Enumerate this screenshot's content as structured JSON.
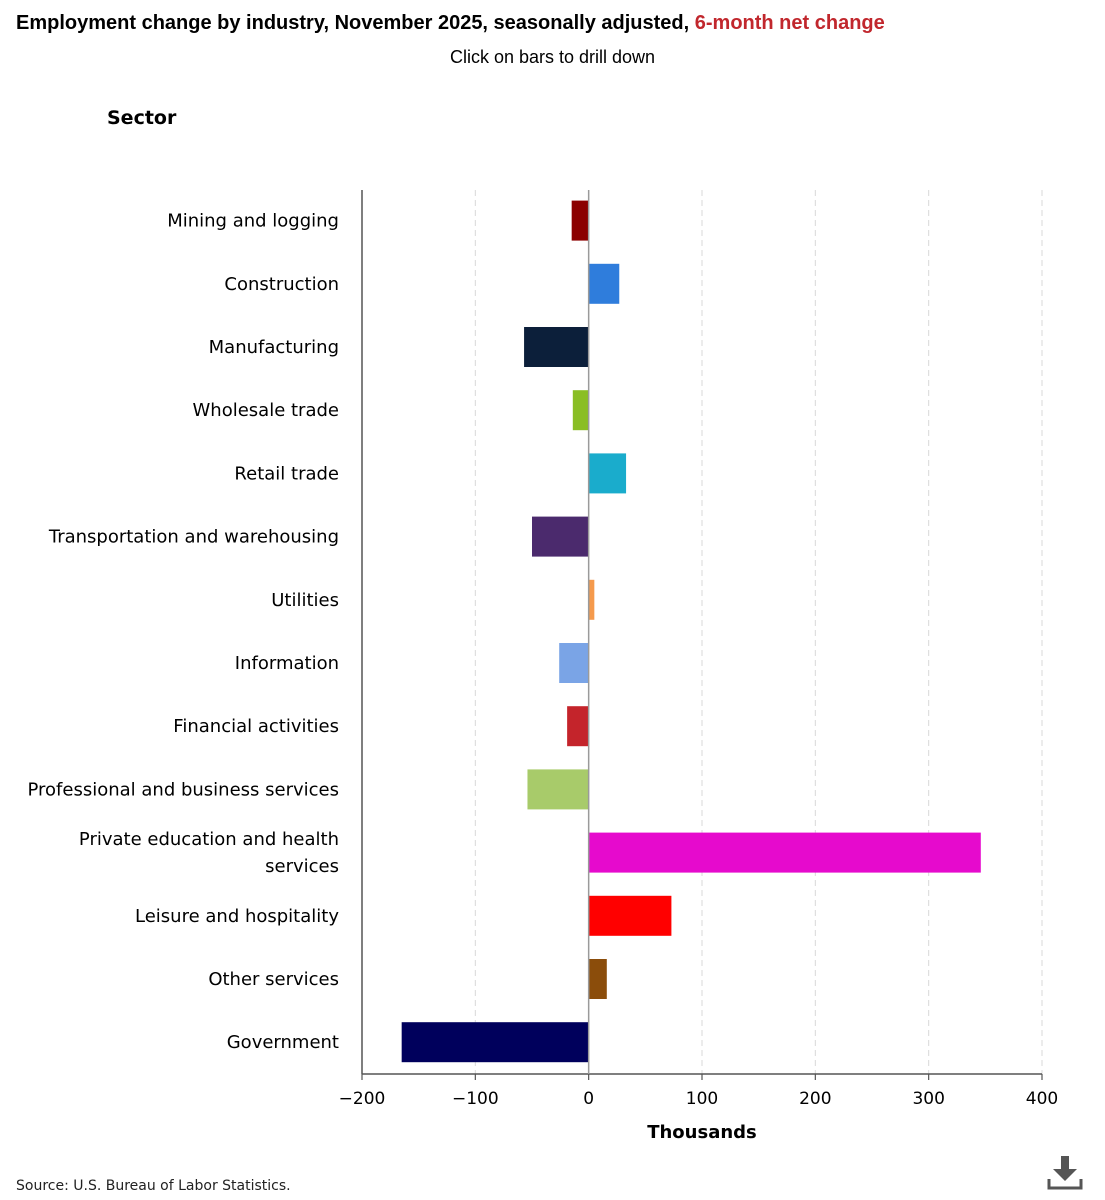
{
  "header": {
    "title_main": "Employment change by industry, November 2025, seasonally adjusted,",
    "title_accent": "6-month net change",
    "subtitle": "Click on bars to drill down"
  },
  "chart_data": {
    "type": "bar",
    "orientation": "horizontal",
    "category_axis_title": "Sector",
    "xlabel": "Thousands",
    "xlim": [
      -200,
      400
    ],
    "xticks": [
      -200,
      -100,
      0,
      100,
      200,
      300,
      400
    ],
    "xtick_labels": [
      "−200",
      "−100",
      "0",
      "100",
      "200",
      "300",
      "400"
    ],
    "grid": "vertical dashed",
    "categories": [
      "Mining and logging",
      "Construction",
      "Manufacturing",
      "Wholesale trade",
      "Retail trade",
      "Transportation and warehousing",
      "Utilities",
      "Information",
      "Financial activities",
      "Professional and business services",
      "Private education and health services",
      "Leisure and hospitality",
      "Other services",
      "Government"
    ],
    "values": [
      -15,
      27,
      -57,
      -14,
      33,
      -50,
      5,
      -26,
      -19,
      -54,
      346,
      73,
      16,
      -165
    ],
    "colors": [
      "#8b0000",
      "#2f7ddc",
      "#0c1f3a",
      "#8abe24",
      "#1aaccc",
      "#4b2a6d",
      "#f59a4c",
      "#7aa4e6",
      "#c4242b",
      "#a8cb6a",
      "#e60acd",
      "#ff0000",
      "#8b4d0b",
      "#00005c"
    ]
  },
  "footer": {
    "source": "Source: U.S. Bureau of Labor Statistics.",
    "download_icon": "download-icon"
  }
}
